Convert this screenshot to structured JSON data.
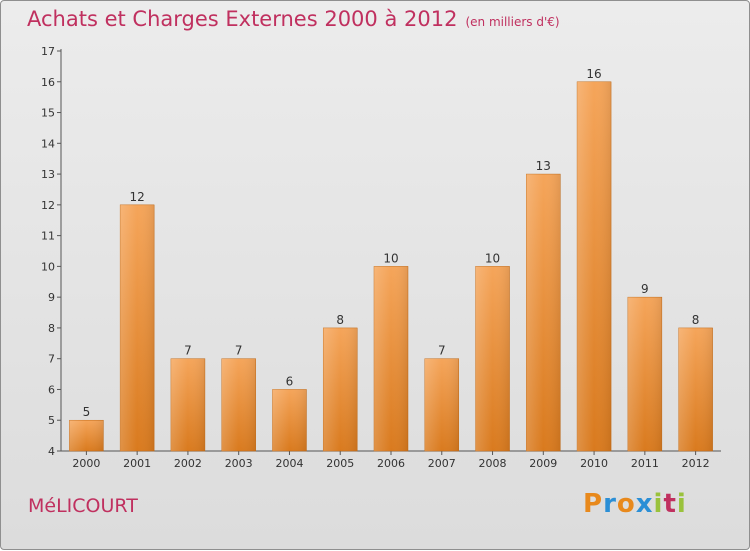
{
  "title": {
    "main": "Achats et Charges Externes 2000 à 2012",
    "unit": "(en milliers d'€)"
  },
  "commune": "MéLICOURT",
  "logo": {
    "text": "Proxiti",
    "letters": [
      {
        "char": "P",
        "color": "#e8891c"
      },
      {
        "char": "r",
        "color": "#2b8fd6"
      },
      {
        "char": "o",
        "color": "#e8891c"
      },
      {
        "char": "x",
        "color": "#2b8fd6"
      },
      {
        "char": "i",
        "color": "#9ac23c"
      },
      {
        "char": "t",
        "color": "#c0305f"
      },
      {
        "char": "i",
        "color": "#9ac23c"
      }
    ]
  },
  "colors": {
    "bar_top": "#f5a55a",
    "bar_bottom": "#d97a1e",
    "title": "#c0305f"
  },
  "chart_data": {
    "type": "bar",
    "categories": [
      "2000",
      "2001",
      "2002",
      "2003",
      "2004",
      "2005",
      "2006",
      "2007",
      "2008",
      "2009",
      "2010",
      "2011",
      "2012"
    ],
    "values": [
      5,
      12,
      7,
      7,
      6,
      8,
      10,
      7,
      10,
      13,
      16,
      9,
      8
    ],
    "title": "Achats et Charges Externes 2000 à 2012",
    "xlabel": "",
    "ylabel": "",
    "ylim": [
      4,
      17
    ],
    "yticks": [
      4,
      5,
      6,
      7,
      8,
      9,
      10,
      11,
      12,
      13,
      14,
      15,
      16,
      17
    ],
    "grid": false,
    "legend": "none"
  }
}
